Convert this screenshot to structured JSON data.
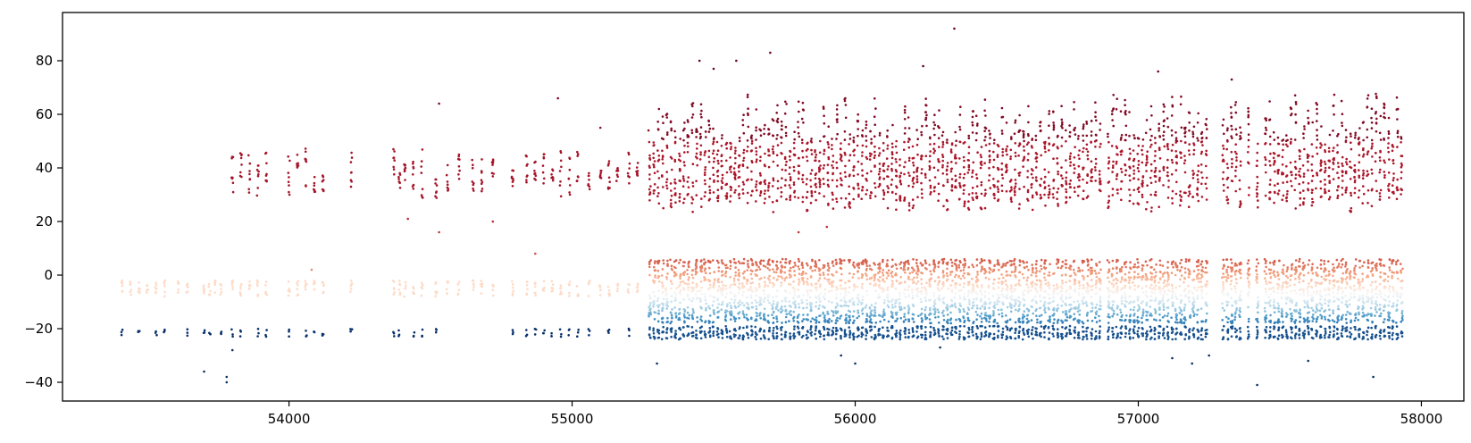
{
  "chart_data": {
    "type": "scatter",
    "title": "",
    "xlabel": "",
    "ylabel": "",
    "xlim": [
      53200,
      58150
    ],
    "ylim": [
      -47,
      98
    ],
    "x_ticks": [
      54000,
      55000,
      56000,
      57000,
      58000
    ],
    "y_ticks": [
      -40,
      -20,
      0,
      20,
      40,
      60,
      80
    ],
    "x_tick_labels": [
      "54000",
      "55000",
      "56000",
      "57000",
      "58000"
    ],
    "y_tick_labels": [
      "−40",
      "−20",
      "0",
      "20",
      "40",
      "60",
      "80"
    ],
    "grid": false,
    "legend": "none",
    "colormap": "RdBu_r",
    "colors": {
      "deep_red": "#67001f",
      "red": "#b2182b",
      "salmon": "#d6604d",
      "peach": "#f4a582",
      "light_peach": "#fddbc7",
      "white": "#f7f7f7",
      "light_blue": "#d1e5f0",
      "sky_blue": "#92c5de",
      "blue": "#4393c3",
      "dark_blue": "#2166ac",
      "navy": "#053061"
    },
    "series": [
      {
        "values_description_omitted": true,
        "bands": [
          {
            "y_range": [
              25,
              70
            ],
            "color_role": "red",
            "x_range": [
              53800,
              57930
            ]
          },
          {
            "y_range": [
              -12,
              8
            ],
            "color_role": "peach",
            "x_range": [
              53400,
              57930
            ]
          },
          {
            "y_range": [
              -19,
              -9
            ],
            "color_role": "sky_blue",
            "x_range": [
              55270,
              57930
            ]
          },
          {
            "y_range": [
              -24,
              -18
            ],
            "color_role": "navy",
            "x_range": [
              53400,
              57930
            ]
          }
        ]
      }
    ],
    "outliers": [
      [
        56350,
        92
      ],
      [
        55700,
        83
      ],
      [
        55580,
        80
      ],
      [
        55450,
        80
      ],
      [
        55500,
        77
      ],
      [
        56240,
        78
      ],
      [
        57070,
        76
      ],
      [
        57330,
        73
      ],
      [
        54530,
        64
      ],
      [
        54950,
        66
      ],
      [
        55100,
        55
      ],
      [
        55270,
        54
      ],
      [
        55800,
        16
      ],
      [
        55900,
        18
      ],
      [
        54420,
        21
      ],
      [
        54720,
        20
      ],
      [
        54530,
        16
      ],
      [
        54870,
        8
      ],
      [
        54080,
        2
      ],
      [
        55660,
        3
      ],
      [
        55300,
        -33
      ],
      [
        55950,
        -30
      ],
      [
        56000,
        -33
      ],
      [
        57420,
        -41
      ],
      [
        57830,
        -38
      ],
      [
        57600,
        -32
      ],
      [
        53700,
        -36
      ],
      [
        53780,
        -38
      ],
      [
        53780,
        -40
      ],
      [
        57190,
        -33
      ],
      [
        57250,
        -30
      ],
      [
        56300,
        -27
      ],
      [
        57120,
        -31
      ],
      [
        53800,
        -28
      ]
    ]
  }
}
